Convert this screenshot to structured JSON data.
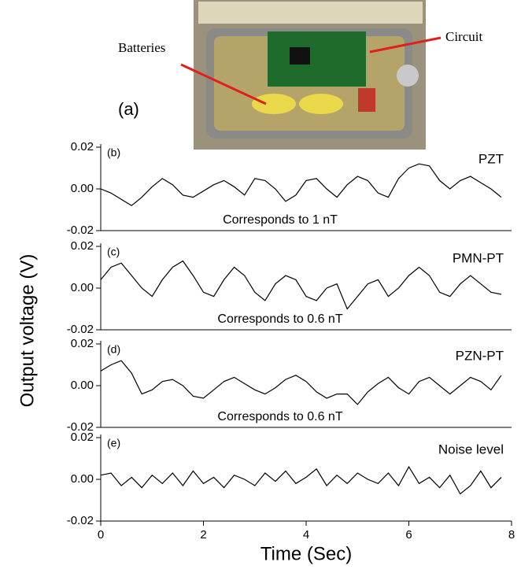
{
  "photo": {
    "panel_label": "(a)",
    "batteries_label": "Batteries",
    "circuit_label": "Circuit"
  },
  "ylabel": "Output voltage (V)",
  "chart_data": [
    {
      "type": "line",
      "panel_label": "(b)",
      "annotation": "Corresponds to 1 nT",
      "x": [
        0,
        0.2,
        0.4,
        0.6,
        0.8,
        1.0,
        1.2,
        1.4,
        1.6,
        1.8,
        2.0,
        2.2,
        2.4,
        2.6,
        2.8,
        3.0,
        3.2,
        3.4,
        3.6,
        3.8,
        4.0,
        4.2,
        4.4,
        4.6,
        4.8,
        5.0,
        5.2,
        5.4,
        5.6,
        5.8,
        6.0,
        6.2,
        6.4,
        6.6,
        6.8,
        7.0,
        7.2,
        7.4,
        7.6,
        7.8
      ],
      "series": [
        {
          "name": "PZT",
          "color": "#000000",
          "values": [
            0.0,
            -0.002,
            -0.005,
            -0.008,
            -0.004,
            0.001,
            0.005,
            0.002,
            -0.003,
            -0.004,
            -0.001,
            0.002,
            0.004,
            0.001,
            -0.003,
            0.005,
            0.004,
            0.0,
            -0.006,
            -0.003,
            0.004,
            0.005,
            0.0,
            -0.004,
            0.002,
            0.006,
            0.004,
            -0.002,
            -0.004,
            0.005,
            0.01,
            0.012,
            0.011,
            0.004,
            0.0,
            0.004,
            0.006,
            0.003,
            0.0,
            -0.004
          ]
        }
      ],
      "xlim": [
        0,
        8
      ],
      "ylim": [
        -0.02,
        0.02
      ],
      "yticks": [
        0.02,
        {
          "value": 0,
          "label": "0.00"
        },
        -0.02
      ]
    },
    {
      "type": "line",
      "panel_label": "(c)",
      "annotation": "Corresponds to 0.6 nT",
      "x": [
        0,
        0.2,
        0.4,
        0.6,
        0.8,
        1.0,
        1.2,
        1.4,
        1.6,
        1.8,
        2.0,
        2.2,
        2.4,
        2.6,
        2.8,
        3.0,
        3.2,
        3.4,
        3.6,
        3.8,
        4.0,
        4.2,
        4.4,
        4.6,
        4.8,
        5.0,
        5.2,
        5.4,
        5.6,
        5.8,
        6.0,
        6.2,
        6.4,
        6.6,
        6.8,
        7.0,
        7.2,
        7.4,
        7.6,
        7.8
      ],
      "series": [
        {
          "name": "PMN-PT",
          "color": "#000000",
          "values": [
            0.004,
            0.01,
            0.012,
            0.006,
            0.0,
            -0.004,
            0.004,
            0.01,
            0.013,
            0.006,
            -0.002,
            -0.004,
            0.004,
            0.01,
            0.006,
            -0.002,
            -0.006,
            0.002,
            0.006,
            0.004,
            -0.004,
            -0.006,
            0.0,
            0.002,
            -0.01,
            -0.004,
            0.002,
            0.004,
            -0.004,
            0.0,
            0.006,
            0.01,
            0.006,
            -0.002,
            -0.004,
            0.002,
            0.006,
            0.002,
            -0.002,
            -0.003
          ]
        }
      ],
      "xlim": [
        0,
        8
      ],
      "ylim": [
        -0.02,
        0.02
      ],
      "yticks": [
        0.02,
        {
          "value": 0,
          "label": "0.00"
        },
        -0.02
      ]
    },
    {
      "type": "line",
      "panel_label": "(d)",
      "annotation": "Corresponds to 0.6 nT",
      "x": [
        0,
        0.2,
        0.4,
        0.6,
        0.8,
        1.0,
        1.2,
        1.4,
        1.6,
        1.8,
        2.0,
        2.2,
        2.4,
        2.6,
        2.8,
        3.0,
        3.2,
        3.4,
        3.6,
        3.8,
        4.0,
        4.2,
        4.4,
        4.6,
        4.8,
        5.0,
        5.2,
        5.4,
        5.6,
        5.8,
        6.0,
        6.2,
        6.4,
        6.6,
        6.8,
        7.0,
        7.2,
        7.4,
        7.6,
        7.8
      ],
      "series": [
        {
          "name": "PZN-PT",
          "color": "#000000",
          "values": [
            0.007,
            0.01,
            0.012,
            0.006,
            -0.004,
            -0.002,
            0.002,
            0.003,
            0.0,
            -0.005,
            -0.006,
            -0.002,
            0.002,
            0.004,
            0.001,
            -0.002,
            -0.004,
            -0.001,
            0.003,
            0.005,
            0.002,
            -0.003,
            -0.006,
            -0.004,
            -0.004,
            -0.009,
            -0.003,
            0.001,
            0.004,
            -0.001,
            -0.004,
            0.002,
            0.004,
            0.0,
            -0.004,
            0.0,
            0.004,
            0.002,
            -0.002,
            0.005
          ]
        }
      ],
      "xlim": [
        0,
        8
      ],
      "ylim": [
        -0.02,
        0.02
      ],
      "yticks": [
        0.02,
        {
          "value": 0,
          "label": "0.00"
        },
        -0.02
      ]
    },
    {
      "type": "line",
      "panel_label": "(e)",
      "xlabel": "Time (Sec)",
      "x": [
        0,
        0.2,
        0.4,
        0.6,
        0.8,
        1.0,
        1.2,
        1.4,
        1.6,
        1.8,
        2.0,
        2.2,
        2.4,
        2.6,
        2.8,
        3.0,
        3.2,
        3.4,
        3.6,
        3.8,
        4.0,
        4.2,
        4.4,
        4.6,
        4.8,
        5.0,
        5.2,
        5.4,
        5.6,
        5.8,
        6.0,
        6.2,
        6.4,
        6.6,
        6.8,
        7.0,
        7.2,
        7.4,
        7.6,
        7.8
      ],
      "series": [
        {
          "name": "Noise level",
          "color": "#000000",
          "values": [
            0.002,
            0.003,
            -0.003,
            0.001,
            -0.004,
            0.002,
            -0.002,
            0.003,
            -0.003,
            0.004,
            -0.002,
            0.001,
            -0.004,
            0.002,
            0.0,
            -0.003,
            0.003,
            -0.001,
            0.004,
            -0.002,
            0.001,
            0.005,
            -0.003,
            0.002,
            -0.002,
            0.003,
            0.0,
            -0.002,
            0.003,
            -0.003,
            0.006,
            -0.002,
            0.001,
            -0.004,
            0.002,
            -0.007,
            -0.003,
            0.004,
            -0.004,
            0.001
          ]
        }
      ],
      "xlim": [
        0,
        8
      ],
      "ylim": [
        -0.02,
        0.02
      ],
      "yticks": [
        0.02,
        {
          "value": 0,
          "label": "0.00"
        },
        -0.02
      ],
      "xticks": [
        0,
        2,
        4,
        6,
        8
      ]
    }
  ]
}
